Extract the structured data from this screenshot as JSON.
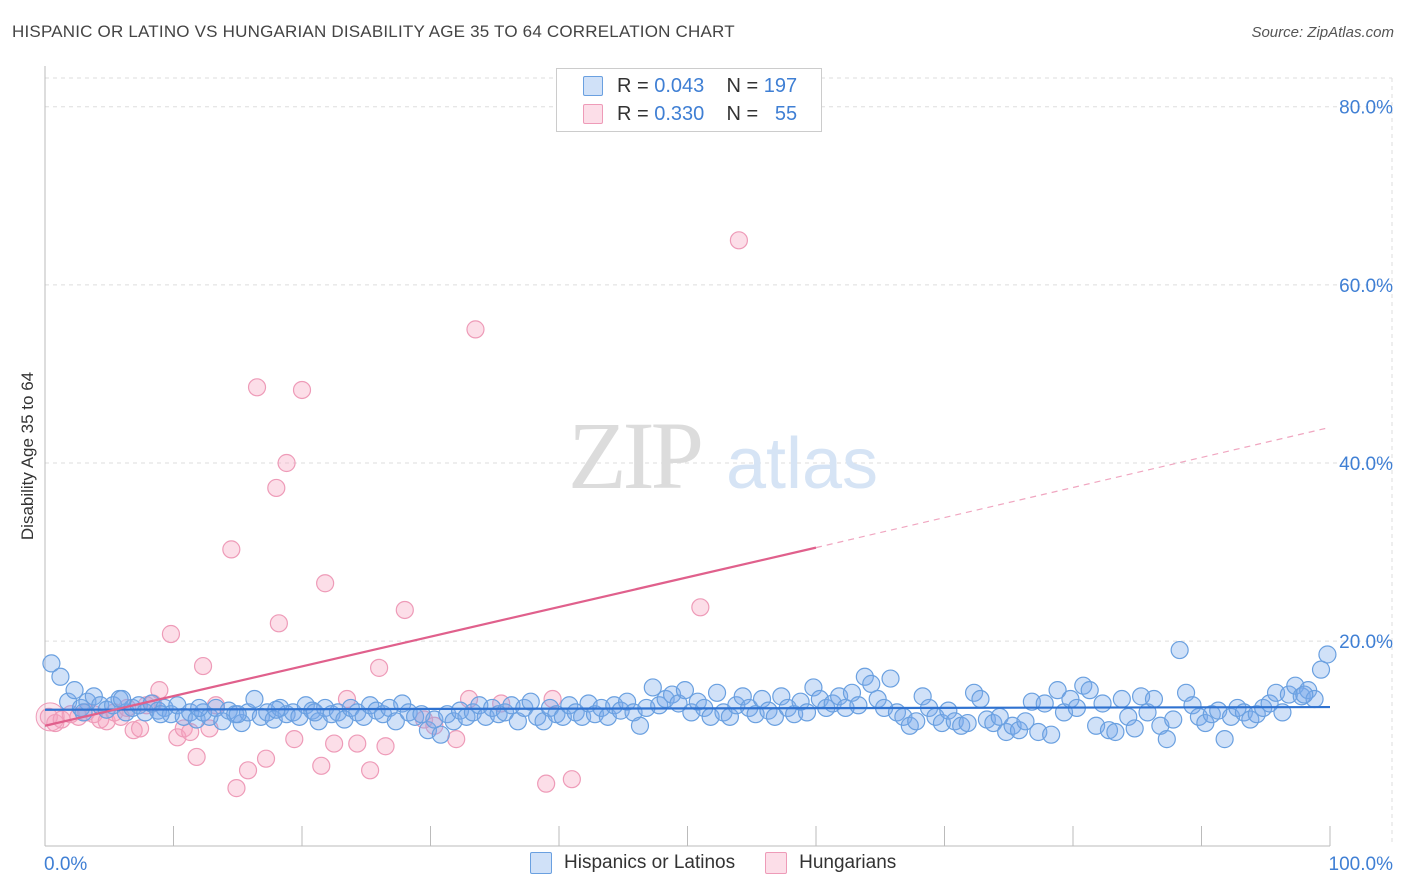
{
  "title": "HISPANIC OR LATINO VS HUNGARIAN DISABILITY AGE 35 TO 64 CORRELATION CHART",
  "source": "Source: ZipAtlas.com",
  "watermark": {
    "zip": "ZIP",
    "atlas": "atlas"
  },
  "legend_top": {
    "rows": [
      {
        "r_label": "R =",
        "r_value": "0.043",
        "n_label": "N =",
        "n_value": "197",
        "color": "#5b9be0"
      },
      {
        "r_label": "R =",
        "r_value": "0.330",
        "n_label": "N =",
        "n_value": "55",
        "color": "#e87ca0"
      }
    ]
  },
  "legend_bottom": [
    {
      "label": "Hispanics or Latinos",
      "color": "#5b9be0"
    },
    {
      "label": "Hungarians",
      "color": "#e87ca0"
    }
  ],
  "colors": {
    "blue_fill": "rgba(120,170,235,0.35)",
    "blue_stroke": "#6aa0e0",
    "pink_fill": "rgba(245,160,190,0.35)",
    "pink_stroke": "#ee9bb8",
    "blue_line": "#2f72d0",
    "pink_line": "#e0608c",
    "tick_label": "#3f7fd4"
  },
  "chart_data": {
    "type": "scatter",
    "title": "HISPANIC OR LATINO VS HUNGARIAN DISABILITY AGE 35 TO 64 CORRELATION CHART",
    "xlabel": "",
    "ylabel": "Disability Age 35 to 64",
    "xlim": [
      0,
      100
    ],
    "ylim": [
      -3,
      83
    ],
    "x_tick_labels": [
      "0.0%",
      "100.0%"
    ],
    "y_ticks": [
      20,
      40,
      60,
      80
    ],
    "y_tick_labels": [
      "20.0%",
      "40.0%",
      "60.0%",
      "80.0%"
    ],
    "grid": true,
    "series": [
      {
        "name": "Hispanics or Latinos",
        "R": 0.043,
        "N": 197,
        "trend": {
          "x0": 0,
          "y0": 12.3,
          "x1": 100,
          "y1": 12.6
        },
        "points": [
          [
            0.5,
            17.5
          ],
          [
            1.2,
            16.0
          ],
          [
            1.8,
            13.2
          ],
          [
            2.3,
            14.5
          ],
          [
            2.8,
            12.5
          ],
          [
            3.3,
            13.2
          ],
          [
            3.8,
            13.8
          ],
          [
            4.3,
            12.8
          ],
          [
            4.8,
            12.3
          ],
          [
            5.3,
            12.8
          ],
          [
            5.8,
            13.5
          ],
          [
            6.3,
            12.0
          ],
          [
            6.8,
            12.5
          ],
          [
            7.3,
            12.8
          ],
          [
            7.8,
            12.0
          ],
          [
            8.3,
            13.0
          ],
          [
            8.8,
            12.2
          ],
          [
            9.3,
            12.5
          ],
          [
            9.8,
            11.8
          ],
          [
            10.3,
            12.8
          ],
          [
            10.8,
            11.5
          ],
          [
            11.3,
            12.0
          ],
          [
            11.8,
            11.2
          ],
          [
            12.3,
            12.0
          ],
          [
            12.8,
            11.5
          ],
          [
            13.3,
            12.5
          ],
          [
            13.8,
            11.0
          ],
          [
            14.3,
            12.2
          ],
          [
            14.8,
            11.8
          ],
          [
            15.3,
            10.8
          ],
          [
            15.8,
            12.0
          ],
          [
            16.3,
            13.5
          ],
          [
            16.8,
            11.5
          ],
          [
            17.3,
            12.0
          ],
          [
            17.8,
            11.2
          ],
          [
            18.3,
            12.5
          ],
          [
            18.8,
            11.8
          ],
          [
            19.3,
            12.0
          ],
          [
            19.8,
            11.5
          ],
          [
            20.3,
            12.8
          ],
          [
            20.8,
            12.2
          ],
          [
            21.3,
            11.0
          ],
          [
            21.8,
            12.5
          ],
          [
            22.3,
            11.8
          ],
          [
            22.8,
            12.0
          ],
          [
            23.3,
            11.2
          ],
          [
            23.8,
            12.5
          ],
          [
            24.3,
            12.0
          ],
          [
            24.8,
            11.5
          ],
          [
            25.3,
            12.8
          ],
          [
            25.8,
            12.2
          ],
          [
            26.3,
            11.8
          ],
          [
            26.8,
            12.5
          ],
          [
            27.3,
            11.0
          ],
          [
            27.8,
            13.0
          ],
          [
            28.3,
            12.0
          ],
          [
            28.8,
            11.5
          ],
          [
            29.3,
            11.8
          ],
          [
            29.8,
            10.0
          ],
          [
            30.3,
            11.2
          ],
          [
            30.8,
            9.5
          ],
          [
            31.3,
            11.8
          ],
          [
            31.8,
            11.0
          ],
          [
            32.3,
            12.2
          ],
          [
            32.8,
            11.5
          ],
          [
            33.3,
            12.0
          ],
          [
            33.8,
            12.8
          ],
          [
            34.3,
            11.5
          ],
          [
            34.8,
            12.5
          ],
          [
            35.3,
            11.8
          ],
          [
            35.8,
            12.0
          ],
          [
            36.3,
            12.8
          ],
          [
            36.8,
            11.0
          ],
          [
            37.3,
            12.5
          ],
          [
            37.8,
            13.2
          ],
          [
            38.3,
            11.5
          ],
          [
            38.8,
            11.0
          ],
          [
            39.3,
            12.5
          ],
          [
            39.8,
            11.8
          ],
          [
            40.3,
            11.5
          ],
          [
            40.8,
            12.8
          ],
          [
            41.3,
            12.0
          ],
          [
            41.8,
            11.5
          ],
          [
            42.3,
            13.0
          ],
          [
            42.8,
            11.8
          ],
          [
            43.3,
            12.5
          ],
          [
            43.8,
            11.5
          ],
          [
            44.3,
            12.8
          ],
          [
            44.8,
            12.2
          ],
          [
            45.3,
            13.2
          ],
          [
            45.8,
            12.0
          ],
          [
            46.3,
            10.5
          ],
          [
            46.8,
            12.5
          ],
          [
            47.3,
            14.8
          ],
          [
            47.8,
            12.8
          ],
          [
            48.3,
            13.5
          ],
          [
            48.8,
            14.0
          ],
          [
            49.3,
            13.0
          ],
          [
            49.8,
            14.5
          ],
          [
            50.3,
            12.0
          ],
          [
            50.8,
            13.2
          ],
          [
            51.3,
            12.5
          ],
          [
            51.8,
            11.5
          ],
          [
            52.3,
            14.2
          ],
          [
            52.8,
            12.0
          ],
          [
            53.3,
            11.5
          ],
          [
            53.8,
            12.8
          ],
          [
            54.3,
            13.8
          ],
          [
            54.8,
            12.5
          ],
          [
            55.3,
            11.8
          ],
          [
            55.8,
            13.5
          ],
          [
            56.3,
            12.2
          ],
          [
            56.8,
            11.5
          ],
          [
            57.3,
            13.8
          ],
          [
            57.8,
            12.5
          ],
          [
            58.3,
            11.8
          ],
          [
            58.8,
            13.2
          ],
          [
            59.3,
            12.0
          ],
          [
            59.8,
            14.8
          ],
          [
            60.3,
            13.5
          ],
          [
            60.8,
            12.5
          ],
          [
            61.3,
            13.0
          ],
          [
            61.8,
            13.8
          ],
          [
            62.3,
            12.5
          ],
          [
            62.8,
            14.2
          ],
          [
            63.3,
            12.8
          ],
          [
            63.8,
            16.0
          ],
          [
            64.3,
            15.2
          ],
          [
            64.8,
            13.5
          ],
          [
            65.3,
            12.5
          ],
          [
            65.8,
            15.8
          ],
          [
            66.3,
            12.0
          ],
          [
            66.8,
            11.5
          ],
          [
            67.3,
            10.5
          ],
          [
            67.8,
            11.0
          ],
          [
            68.3,
            13.8
          ],
          [
            68.8,
            12.5
          ],
          [
            69.3,
            11.5
          ],
          [
            69.8,
            10.8
          ],
          [
            70.3,
            12.2
          ],
          [
            70.8,
            11.0
          ],
          [
            71.3,
            10.5
          ],
          [
            71.8,
            10.8
          ],
          [
            72.3,
            14.2
          ],
          [
            72.8,
            13.5
          ],
          [
            73.3,
            11.2
          ],
          [
            73.8,
            10.8
          ],
          [
            74.3,
            11.5
          ],
          [
            74.8,
            9.8
          ],
          [
            75.3,
            10.5
          ],
          [
            75.8,
            10.0
          ],
          [
            76.3,
            11.0
          ],
          [
            76.8,
            13.2
          ],
          [
            77.3,
            9.8
          ],
          [
            77.8,
            13.0
          ],
          [
            78.3,
            9.5
          ],
          [
            78.8,
            14.5
          ],
          [
            79.3,
            12.0
          ],
          [
            79.8,
            13.5
          ],
          [
            80.3,
            12.5
          ],
          [
            80.8,
            15.0
          ],
          [
            81.3,
            14.5
          ],
          [
            81.8,
            10.5
          ],
          [
            82.3,
            13.0
          ],
          [
            82.8,
            10.0
          ],
          [
            83.3,
            9.8
          ],
          [
            83.8,
            13.5
          ],
          [
            84.3,
            11.5
          ],
          [
            84.8,
            10.2
          ],
          [
            85.3,
            13.8
          ],
          [
            85.8,
            12.0
          ],
          [
            86.3,
            13.5
          ],
          [
            86.8,
            10.5
          ],
          [
            87.3,
            9.0
          ],
          [
            87.8,
            11.2
          ],
          [
            88.3,
            19.0
          ],
          [
            88.8,
            14.2
          ],
          [
            89.3,
            12.8
          ],
          [
            89.8,
            11.5
          ],
          [
            90.3,
            10.8
          ],
          [
            90.8,
            11.8
          ],
          [
            91.3,
            12.2
          ],
          [
            91.8,
            9.0
          ],
          [
            92.3,
            11.5
          ],
          [
            92.8,
            12.5
          ],
          [
            93.3,
            12.0
          ],
          [
            93.8,
            11.2
          ],
          [
            94.3,
            11.8
          ],
          [
            94.8,
            12.5
          ],
          [
            95.3,
            13.0
          ],
          [
            95.8,
            14.2
          ],
          [
            96.3,
            12.0
          ],
          [
            96.8,
            14.0
          ],
          [
            97.3,
            15.0
          ],
          [
            97.8,
            13.8
          ],
          [
            98.3,
            14.5
          ],
          [
            98.8,
            13.5
          ],
          [
            99.3,
            16.8
          ],
          [
            99.8,
            18.5
          ],
          [
            98.0,
            14.0
          ],
          [
            3.0,
            12.0
          ],
          [
            6.0,
            13.5
          ],
          [
            9.0,
            11.8
          ],
          [
            12.0,
            12.5
          ],
          [
            15.0,
            11.8
          ],
          [
            18.0,
            12.3
          ],
          [
            21.0,
            12.0
          ]
        ]
      },
      {
        "name": "Hungarians",
        "R": 0.33,
        "N": 55,
        "trend": {
          "x0": 0,
          "y0": 10.5,
          "x1": 60,
          "y1": 30.5,
          "dashed_to_x": 100,
          "dashed_to_y": 44.0
        },
        "points": [
          [
            0.3,
            11.5
          ],
          [
            0.8,
            10.8
          ],
          [
            1.3,
            11.2
          ],
          [
            2.0,
            11.8
          ],
          [
            2.6,
            11.5
          ],
          [
            3.2,
            12.0
          ],
          [
            3.8,
            11.8
          ],
          [
            4.3,
            11.2
          ],
          [
            4.8,
            11.0
          ],
          [
            5.4,
            12.0
          ],
          [
            5.9,
            11.5
          ],
          [
            6.4,
            12.5
          ],
          [
            6.9,
            10.0
          ],
          [
            7.4,
            10.2
          ],
          [
            7.9,
            12.8
          ],
          [
            8.4,
            13.0
          ],
          [
            8.9,
            14.5
          ],
          [
            9.8,
            20.8
          ],
          [
            10.3,
            9.2
          ],
          [
            10.8,
            10.2
          ],
          [
            11.3,
            9.8
          ],
          [
            11.8,
            7.0
          ],
          [
            12.3,
            17.2
          ],
          [
            12.8,
            10.2
          ],
          [
            13.3,
            12.8
          ],
          [
            14.5,
            30.3
          ],
          [
            14.9,
            3.5
          ],
          [
            15.8,
            5.5
          ],
          [
            16.5,
            48.5
          ],
          [
            17.2,
            6.8
          ],
          [
            18.0,
            37.2
          ],
          [
            18.2,
            22.0
          ],
          [
            18.8,
            40.0
          ],
          [
            19.4,
            9.0
          ],
          [
            20.0,
            48.2
          ],
          [
            21.5,
            6.0
          ],
          [
            21.8,
            26.5
          ],
          [
            22.5,
            8.5
          ],
          [
            23.5,
            13.5
          ],
          [
            24.3,
            8.5
          ],
          [
            25.3,
            5.5
          ],
          [
            26.0,
            17.0
          ],
          [
            26.5,
            8.2
          ],
          [
            28.0,
            23.5
          ],
          [
            29.5,
            11.2
          ],
          [
            30.3,
            10.5
          ],
          [
            32.0,
            9.0
          ],
          [
            33.0,
            13.5
          ],
          [
            33.5,
            55.0
          ],
          [
            35.5,
            13.0
          ],
          [
            39.0,
            4.0
          ],
          [
            39.5,
            13.5
          ],
          [
            41.0,
            4.5
          ],
          [
            51.0,
            23.8
          ],
          [
            54.0,
            65.0
          ]
        ]
      }
    ]
  }
}
